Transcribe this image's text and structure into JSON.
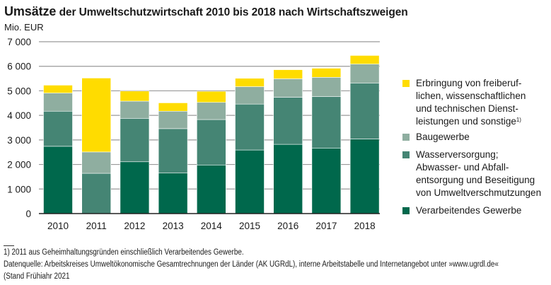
{
  "chart_data": {
    "type": "bar",
    "stacked": true,
    "title_bold_part": "Umsätze",
    "title_rest": "der Umweltschutzwirtschaft 2010 bis 2018 nach Wirtschaftszweigen",
    "ylabel": "Mio. EUR",
    "xlabel": "",
    "ylim": [
      0,
      7000
    ],
    "yticks": [
      0,
      1000,
      2000,
      3000,
      4000,
      5000,
      6000,
      7000
    ],
    "ytick_labels": [
      "0",
      "1 000",
      "2 000",
      "3 000",
      "4 000",
      "5 000",
      "6 000",
      "7 000"
    ],
    "grid": true,
    "legend_position": "right",
    "categories": [
      "2010",
      "2011",
      "2012",
      "2013",
      "2014",
      "2015",
      "2016",
      "2017",
      "2018"
    ],
    "series": [
      {
        "name": "Verarbeitendes Gewerbe",
        "legend_lines": [
          "Verarbeitendes Gewerbe"
        ],
        "color": "#00684c",
        "values": [
          2740,
          0,
          2110,
          1650,
          1980,
          2590,
          2820,
          2670,
          3040
        ]
      },
      {
        "name": "Wasserversorgung; Abwasser- und Abfallentsorgung und Beseitigung von Umweltverschmutzungen",
        "legend_lines": [
          "Wasserversorgung;",
          "Abwasser- und Abfall-",
          "entsorgung und Beseitigung",
          "von Umweltverschmutzungen"
        ],
        "color": "#458574",
        "values": [
          1430,
          1640,
          1770,
          1810,
          1850,
          1870,
          1920,
          2100,
          2280
        ]
      },
      {
        "name": "Baugewerbe",
        "legend_lines": [
          "Baugewerbe"
        ],
        "color": "#8faea0",
        "values": [
          740,
          870,
          700,
          710,
          700,
          710,
          750,
          780,
          770
        ]
      },
      {
        "name": "Erbringung von freiberuflichen, wissenschaftlichen und technischen Dienstleistungen und sonstige",
        "legend_lines": [
          "Erbringung von freiberuf-",
          "lichen, wissenschaftlichen",
          "und technischen Dienst-",
          "leistungen und sonstige"
        ],
        "legend_sup": "1)",
        "color": "#ffdc00",
        "values": [
          320,
          3010,
          410,
          340,
          450,
          340,
          370,
          370,
          350
        ]
      }
    ]
  },
  "footnotes": [
    "1) 2011 aus Geheimhaltungsgründen einschließlich Verarbeitendes Gewerbe.",
    "Datenquelle: Arbeitskreises Umweltökonomische Gesamtrechnungen der Länder (AK UGRdL), interne Arbeitstabelle und Internetangebot unter »www.ugrdl.de«",
    "(Stand Frühiahr 2021"
  ]
}
